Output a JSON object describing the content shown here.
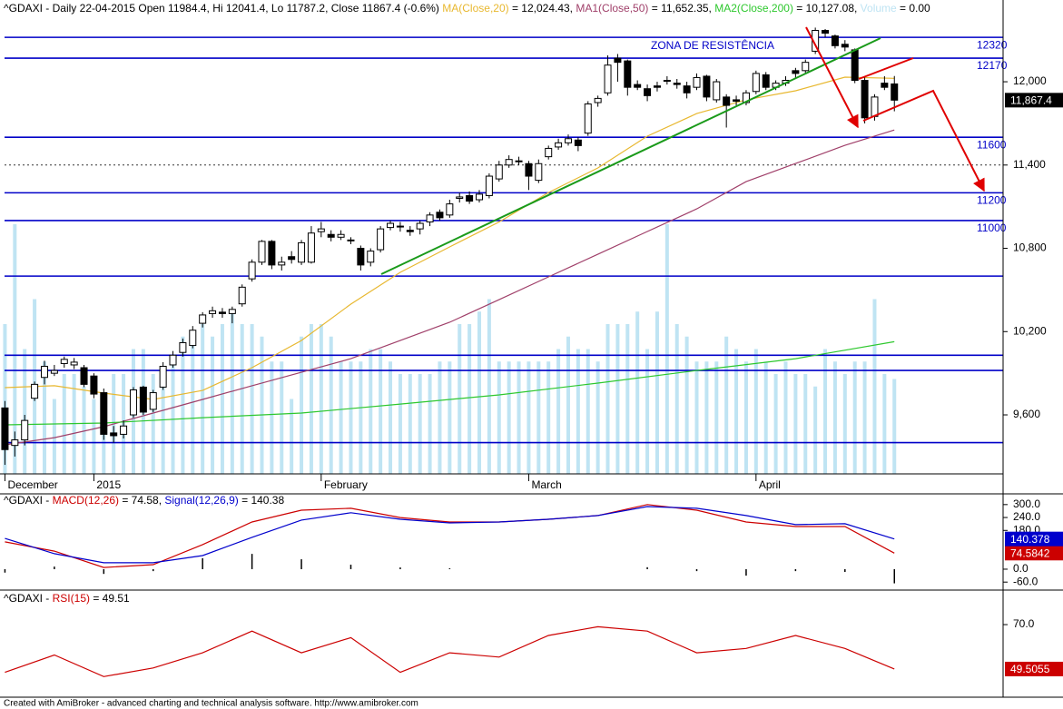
{
  "chart_data": [
    {
      "type": "candlestick",
      "title_prefix": "^GDAXI - Daily 22-04-2015 Open 11984.4, Hi 12041.4, Lo 11787.2, Close 11867.4 (-0.6%)  ",
      "xlim": [
        -0.5,
        101
      ],
      "xticks": [
        {
          "value": 0,
          "label": "December"
        },
        {
          "value": 9,
          "label": "2015"
        },
        {
          "value": 32,
          "label": "February"
        },
        {
          "value": 53,
          "label": "March"
        },
        {
          "value": 76,
          "label": "April"
        }
      ],
      "ylim": [
        9175,
        12589
      ],
      "yticks": [
        {
          "value": 12000,
          "label": "12,000"
        },
        {
          "value": 11400,
          "label": "11,400"
        },
        {
          "value": 10800,
          "label": "10,800"
        },
        {
          "value": 10200,
          "label": "10,200"
        },
        {
          "value": 9600,
          "label": "9,600"
        }
      ],
      "open": [
        9650,
        9380,
        9420,
        9720,
        9870,
        9900,
        9970,
        9960,
        9940,
        9880,
        9760,
        9470,
        9460,
        9600,
        9800,
        9640,
        9800,
        9960,
        10050,
        10100,
        10260,
        10330,
        10340,
        10330,
        10400,
        10580,
        10700,
        10850,
        10680,
        10740,
        10700,
        10700,
        10920,
        10900,
        10880,
        10860,
        10800,
        10700,
        10790,
        10950,
        10960,
        10930,
        10940,
        10990,
        11060,
        11040,
        11160,
        11180,
        11150,
        11180,
        11300,
        11400,
        11430,
        11410,
        11290,
        11460,
        11530,
        11560,
        11580,
        11630,
        11850,
        11920,
        12170,
        12150,
        11980,
        11950,
        11970,
        12010,
        11990,
        11970,
        11960,
        12040,
        11870,
        11890,
        11870,
        11850,
        11930,
        12050,
        11960,
        11990,
        12080,
        12080,
        12220,
        12370,
        12330,
        12270,
        12230,
        12010,
        11750,
        11990,
        11984.4
      ],
      "high": [
        9700,
        9480,
        9600,
        9840,
        9990,
        9960,
        10020,
        10010,
        9960,
        9900,
        9790,
        9520,
        9560,
        9800,
        9810,
        9780,
        9980,
        10060,
        10150,
        10240,
        10340,
        10380,
        10370,
        10380,
        10540,
        10720,
        10860,
        10860,
        10740,
        10780,
        10860,
        10960,
        10990,
        10930,
        10930,
        10880,
        10820,
        10800,
        10960,
        11000,
        10990,
        10960,
        11000,
        11060,
        11080,
        11150,
        11200,
        11210,
        11220,
        11340,
        11430,
        11470,
        11460,
        11430,
        11440,
        11540,
        11590,
        11620,
        11600,
        11860,
        11900,
        12190,
        12200,
        12160,
        12010,
        11980,
        12000,
        12040,
        12020,
        12000,
        12060,
        12050,
        12020,
        11910,
        11900,
        11940,
        12080,
        12070,
        12010,
        12040,
        12100,
        12160,
        12390,
        12380,
        12340,
        12300,
        12240,
        12030,
        11910,
        12040,
        12041.4
      ],
      "low": [
        9240,
        9300,
        9380,
        9700,
        9820,
        9880,
        9940,
        9930,
        9800,
        9720,
        9420,
        9400,
        9430,
        9580,
        9600,
        9620,
        9780,
        9940,
        10020,
        10080,
        10230,
        10300,
        10300,
        10260,
        10380,
        10560,
        10680,
        10650,
        10640,
        10690,
        10680,
        10690,
        10880,
        10850,
        10860,
        10830,
        10640,
        10670,
        10770,
        10930,
        10920,
        10890,
        10900,
        10960,
        11000,
        11020,
        11130,
        11120,
        11130,
        11160,
        11280,
        11380,
        11400,
        11220,
        11270,
        11440,
        11510,
        11540,
        11500,
        11610,
        11820,
        11900,
        12000,
        11900,
        11940,
        11860,
        11930,
        11980,
        11950,
        11880,
        11940,
        11860,
        11850,
        11670,
        11830,
        11830,
        11910,
        11940,
        11940,
        11970,
        12030,
        12060,
        12200,
        12320,
        12240,
        12220,
        11990,
        11700,
        11720,
        11940,
        11787.2
      ],
      "close": [
        9350,
        9420,
        9560,
        9820,
        9950,
        9920,
        10000,
        9980,
        9820,
        9750,
        9460,
        9450,
        9520,
        9780,
        9620,
        9760,
        9950,
        10030,
        10120,
        10210,
        10320,
        10350,
        10330,
        10360,
        10520,
        10700,
        10850,
        10680,
        10700,
        10720,
        10840,
        10910,
        10940,
        10880,
        10900,
        10860,
        10680,
        10780,
        10940,
        10980,
        10960,
        10920,
        10980,
        11040,
        11020,
        11120,
        11170,
        11140,
        11190,
        11320,
        11400,
        11440,
        11430,
        11320,
        11410,
        11520,
        11560,
        11590,
        11540,
        11840,
        11880,
        12120,
        12140,
        11960,
        11960,
        11900,
        11960,
        12010,
        11980,
        11920,
        12030,
        11890,
        12000,
        11830,
        11860,
        11920,
        12060,
        11960,
        11990,
        12010,
        12060,
        12140,
        12370,
        12350,
        12260,
        12250,
        12010,
        11740,
        11890,
        11960,
        11867.4
      ],
      "series": [
        {
          "name": "MA(Close,20)",
          "value_label": " = 12,024.43, ",
          "color": "#e8b830",
          "x": [
            0,
            5,
            10,
            15,
            20,
            25,
            30,
            35,
            40,
            45,
            50,
            55,
            60,
            65,
            70,
            75,
            80,
            85,
            90
          ],
          "values": [
            9796,
            9810,
            9757,
            9711,
            9776,
            9940,
            10136,
            10398,
            10627,
            10810,
            10990,
            11202,
            11379,
            11608,
            11771,
            11870,
            11935,
            12033,
            12024.43
          ]
        },
        {
          "name": "MA1(Close,50)",
          "value_label": " = 11,652.35, ",
          "color": "#a0406a",
          "x": [
            0,
            5,
            10,
            15,
            20,
            25,
            30,
            35,
            40,
            45,
            50,
            55,
            60,
            65,
            70,
            75,
            80,
            85,
            90
          ],
          "values": [
            9384,
            9436,
            9515,
            9613,
            9711,
            9810,
            9907,
            10005,
            10136,
            10267,
            10430,
            10594,
            10757,
            10921,
            11084,
            11280,
            11411,
            11542,
            11652.35
          ]
        },
        {
          "name": "MA2(Close,200)",
          "value_label": " = 10,127.08, ",
          "color": "#2ec82e",
          "x": [
            0,
            10,
            20,
            30,
            40,
            50,
            60,
            70,
            80,
            90
          ],
          "values": [
            9528,
            9541,
            9580,
            9613,
            9678,
            9744,
            9829,
            9920,
            10005,
            10127.08
          ]
        }
      ],
      "volume": {
        "name": "Volume",
        "value_label": " = 0.00",
        "color": "#bfe4f3",
        "vlim": [
          0,
          100
        ],
        "values": [
          60,
          100,
          50,
          70,
          45,
          30,
          40,
          40,
          35,
          30,
          30,
          40,
          40,
          50,
          50,
          40,
          40,
          45,
          55,
          55,
          60,
          55,
          60,
          65,
          60,
          60,
          55,
          45,
          45,
          30,
          55,
          60,
          60,
          55,
          45,
          45,
          45,
          50,
          50,
          45,
          40,
          40,
          40,
          40,
          45,
          45,
          60,
          60,
          65,
          70,
          45,
          45,
          45,
          45,
          45,
          45,
          50,
          55,
          50,
          50,
          45,
          60,
          60,
          60,
          65,
          50,
          65,
          100,
          60,
          55,
          45,
          45,
          45,
          55,
          50,
          45,
          50,
          45,
          40,
          45,
          40,
          40,
          35,
          50,
          45,
          40,
          45,
          45,
          70,
          40,
          38
        ]
      },
      "levels": [
        {
          "value": 12320,
          "label": "12320"
        },
        {
          "value": 12170,
          "label": "12170"
        },
        {
          "value": 11600,
          "label": "11600"
        },
        {
          "value": 11200,
          "label": "11200"
        },
        {
          "value": 11000,
          "label": "11000"
        },
        10600,
        10030,
        9920,
        9400
      ],
      "level_color": "#0000c8",
      "dashed_levels": [
        11400
      ],
      "annotation": "ZONA DE RESISTÊNCIA",
      "last_value": {
        "value": 11867.4,
        "label": "11,867.4"
      }
    },
    {
      "type": "line",
      "title_prefix": "^GDAXI - ",
      "ylim": [
        -76,
        333
      ],
      "yticks": [
        {
          "value": 300,
          "label": "300.0"
        },
        {
          "value": 240,
          "label": "240.0"
        },
        {
          "value": 180,
          "label": "180.0"
        },
        {
          "value": 0,
          "label": "0.0"
        },
        {
          "value": -60,
          "label": "-60.0"
        }
      ],
      "x": [
        0,
        5,
        10,
        15,
        20,
        25,
        30,
        35,
        40,
        45,
        50,
        55,
        60,
        65,
        70,
        75,
        80,
        85,
        90
      ],
      "series": [
        {
          "name": "MACD(12,26)",
          "value_label": " = 74.58, ",
          "color": "#cc0000",
          "values": [
            127,
            84,
            8,
            21,
            114,
            219,
            274,
            283,
            240,
            219,
            219,
            232,
            249,
            300,
            274,
            219,
            198,
            198,
            74.58
          ],
          "last_value": {
            "value": 74.5842,
            "label": "74.5842"
          }
        },
        {
          "name": "Signal(12,26,9)",
          "value_label": " = 140.38",
          "color": "#0000cc",
          "values": [
            143,
            72,
            30,
            30,
            63,
            148,
            228,
            262,
            232,
            215,
            219,
            232,
            249,
            291,
            283,
            249,
            207,
            211,
            140.38
          ],
          "last_value": {
            "value": 140.378,
            "label": "140.378"
          }
        }
      ],
      "histogram": {
        "color": "#000000",
        "values": [
          -16,
          12,
          -22,
          -9,
          51,
          71,
          46,
          21,
          8,
          4,
          0,
          0,
          0,
          9,
          -9,
          -30,
          -9,
          -13,
          -65.8
        ]
      }
    },
    {
      "type": "line",
      "title_prefix": "^GDAXI - ",
      "ylim": [
        36.5,
        85.1
      ],
      "yticks": [
        {
          "value": 70,
          "label": "70.0"
        }
      ],
      "x": [
        0,
        5,
        10,
        15,
        20,
        25,
        30,
        35,
        40,
        45,
        50,
        55,
        60,
        65,
        70,
        75,
        80,
        85,
        90
      ],
      "series": [
        {
          "name": "RSI(15)",
          "value_label": " = 49.51",
          "color": "#cc0000",
          "values": [
            48,
            56,
            46,
            50,
            57,
            67,
            57,
            64,
            48,
            57,
            55,
            65,
            69,
            67,
            57,
            59,
            65,
            59,
            49.51
          ],
          "last_value": {
            "value": 49.5055,
            "label": "49.5055"
          }
        }
      ]
    }
  ],
  "footer": "Created with AmiBroker - advanced charting and technical analysis software. http://www.amibroker.com"
}
